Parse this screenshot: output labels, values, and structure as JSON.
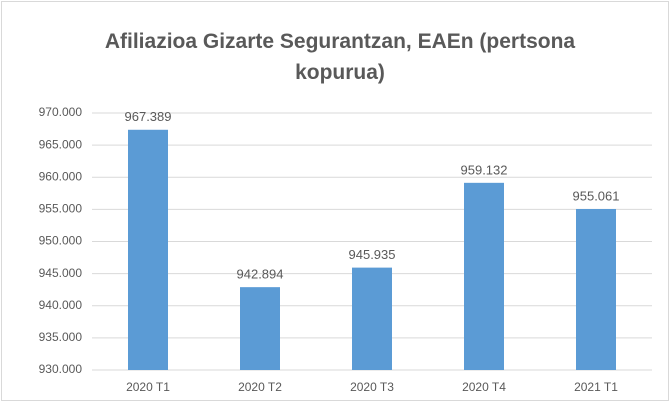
{
  "chart_data": {
    "type": "bar",
    "title": "Afiliazioa Gizarte Segurantzan, EAEn (pertsona kopurua)",
    "categories": [
      "2020 T1",
      "2020 T2",
      "2020 T3",
      "2020 T4",
      "2021 T1"
    ],
    "values": [
      967389,
      942894,
      945935,
      959132,
      955061
    ],
    "value_labels": [
      "967.389",
      "942.894",
      "945.935",
      "959.132",
      "955.061"
    ],
    "color": "#5b9bd5",
    "ylim": [
      930000,
      970000
    ],
    "yticks": [
      {
        "value": 930000,
        "label": "930.000"
      },
      {
        "value": 935000,
        "label": "935.000"
      },
      {
        "value": 940000,
        "label": "940.000"
      },
      {
        "value": 945000,
        "label": "945.000"
      },
      {
        "value": 950000,
        "label": "950.000"
      },
      {
        "value": 955000,
        "label": "955.000"
      },
      {
        "value": 960000,
        "label": "960.000"
      },
      {
        "value": 965000,
        "label": "965.000"
      },
      {
        "value": 970000,
        "label": "970.000"
      }
    ],
    "grid": true
  }
}
